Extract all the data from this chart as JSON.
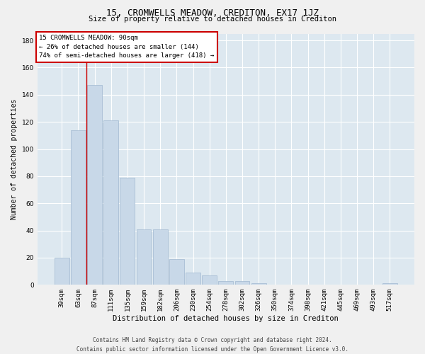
{
  "title": "15, CROMWELLS MEADOW, CREDITON, EX17 1JZ",
  "subtitle": "Size of property relative to detached houses in Crediton",
  "xlabel": "Distribution of detached houses by size in Crediton",
  "ylabel": "Number of detached properties",
  "bar_color": "#c8d8e8",
  "bar_edge_color": "#a0b8d0",
  "background_color": "#dde8f0",
  "grid_color": "#ffffff",
  "annotation_line_color": "#cc0000",
  "annotation_box_color": "#cc0000",
  "categories": [
    "39sqm",
    "63sqm",
    "87sqm",
    "111sqm",
    "135sqm",
    "159sqm",
    "182sqm",
    "206sqm",
    "230sqm",
    "254sqm",
    "278sqm",
    "302sqm",
    "326sqm",
    "350sqm",
    "374sqm",
    "398sqm",
    "421sqm",
    "445sqm",
    "469sqm",
    "493sqm",
    "517sqm"
  ],
  "values": [
    20,
    114,
    147,
    121,
    79,
    41,
    41,
    19,
    9,
    7,
    3,
    3,
    1,
    0,
    0,
    0,
    0,
    0,
    0,
    0,
    1
  ],
  "annotation_text": "15 CROMWELLS MEADOW: 90sqm\n← 26% of detached houses are smaller (144)\n74% of semi-detached houses are larger (418) →",
  "vline_x": 1.5,
  "ylim": [
    0,
    185
  ],
  "yticks": [
    0,
    20,
    40,
    60,
    80,
    100,
    120,
    140,
    160,
    180
  ],
  "footer": "Contains HM Land Registry data © Crown copyright and database right 2024.\nContains public sector information licensed under the Open Government Licence v3.0.",
  "title_fontsize": 9,
  "subtitle_fontsize": 7.5,
  "xlabel_fontsize": 7.5,
  "ylabel_fontsize": 7,
  "tick_fontsize": 6.5,
  "annotation_fontsize": 6.5,
  "footer_fontsize": 5.5
}
